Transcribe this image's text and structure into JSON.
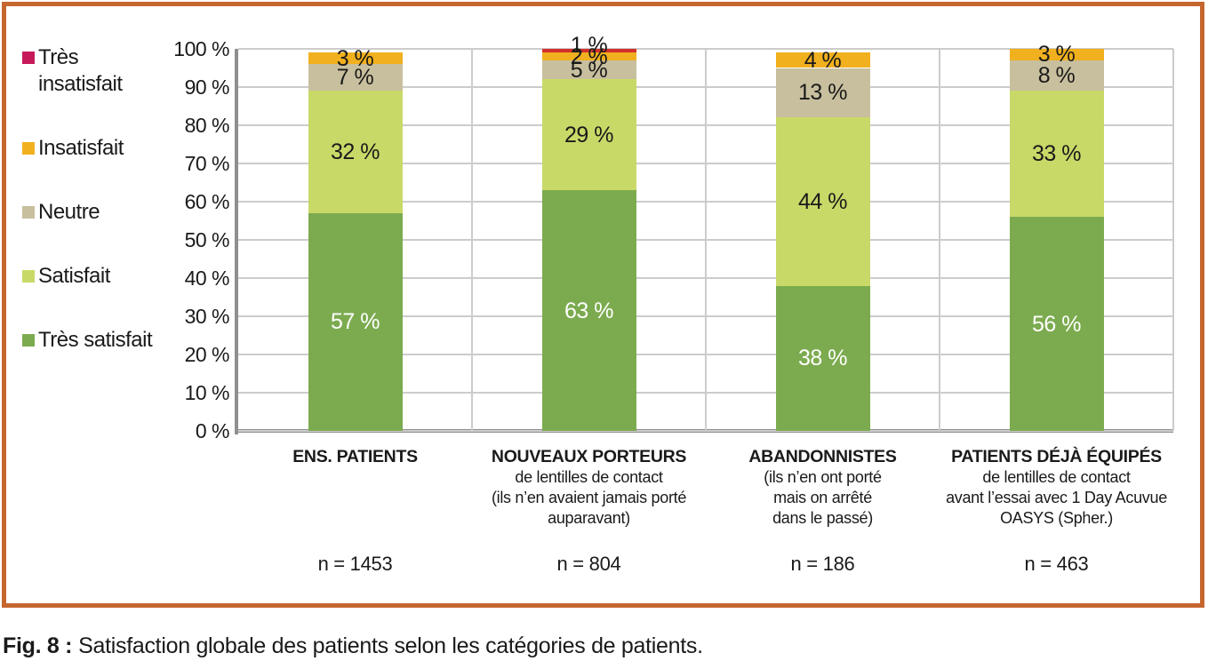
{
  "caption": {
    "prefix": "Fig. 8 :",
    "text": "Satisfaction globale des patients selon les catégories de patients."
  },
  "frame": {
    "border_color": "#c5662f"
  },
  "legend": {
    "items": [
      {
        "label": "Très\ninsatisfait",
        "color": "#c6195b"
      },
      {
        "label": "Insatisfait",
        "color": "#f1b01e"
      },
      {
        "label": "Neutre",
        "color": "#c8bf9e"
      },
      {
        "label": "Satisfait",
        "color": "#c9d968"
      },
      {
        "label": "Très satisfait",
        "color": "#7cab4f"
      }
    ]
  },
  "chart_data": {
    "type": "bar",
    "stacked": true,
    "title": "",
    "xlabel": "",
    "ylabel": "",
    "ylim": [
      0,
      100
    ],
    "ytick_step": 10,
    "grid": true,
    "legend_position": "left",
    "value_suffix": " %",
    "yticks": [
      "0 %",
      "10 %",
      "20 %",
      "30 %",
      "40 %",
      "50 %",
      "60 %",
      "70 %",
      "80 %",
      "90 %",
      "100 %"
    ],
    "categories": [
      {
        "title": "ENS. PATIENTS",
        "subtitle_lines": [],
        "n": "n = 1453"
      },
      {
        "title": "NOUVEAUX PORTEURS",
        "subtitle_lines": [
          "de lentilles de contact",
          "(ils n’en avaient jamais porté",
          "auparavant)"
        ],
        "n": "n = 804"
      },
      {
        "title": "ABANDONNISTES",
        "subtitle_lines": [
          "(ils n’en ont porté",
          "mais on arrêté",
          "dans le passé)"
        ],
        "n": "n = 186"
      },
      {
        "title": "PATIENTS DÉJÀ ÉQUIPÉS",
        "subtitle_lines": [
          "de lentilles de contact",
          "avant l’essai avec 1 Day Acuvue",
          "OASYS (Spher.)"
        ],
        "n": "n = 463"
      }
    ],
    "series": [
      {
        "name": "Très satisfait",
        "color": "#7cab4f",
        "label_color": "#ffffff",
        "values": [
          57,
          63,
          38,
          56
        ]
      },
      {
        "name": "Satisfait",
        "color": "#c9d968",
        "label_color": "#1a1a1a",
        "values": [
          32,
          29,
          44,
          33
        ]
      },
      {
        "name": "Neutre",
        "color": "#c8bf9e",
        "label_color": "#1a1a1a",
        "values": [
          7,
          5,
          13,
          8
        ]
      },
      {
        "name": "Insatisfait",
        "color": "#f1b01e",
        "label_color": "#1a1a1a",
        "values": [
          3,
          2,
          4,
          3
        ]
      },
      {
        "name": "Très insatisfait",
        "color": "#d2302c",
        "label_color": "#1a1a1a",
        "values": [
          0,
          1,
          0,
          0
        ]
      }
    ]
  },
  "colors": {
    "gridline": "#cccccc",
    "axis": "#8f8f8f",
    "text": "#1a1a1a"
  }
}
